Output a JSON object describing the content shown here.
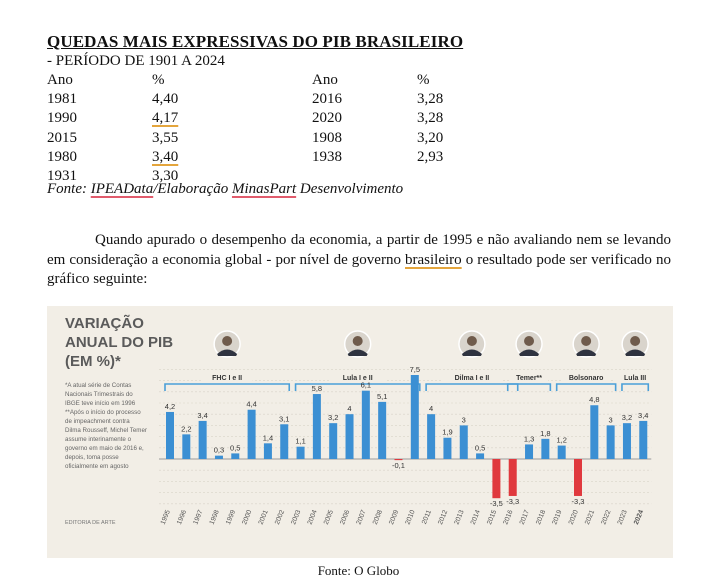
{
  "document": {
    "title": "QUEDAS MAIS EXPRESSIVAS DO PIB BRASILEIRO",
    "subtitle": "- PERÍODO DE 1901 A 2024",
    "table_left": {
      "headers": [
        "Ano",
        "%"
      ],
      "rows": [
        [
          "1981",
          "4,40"
        ],
        [
          "1990",
          "4,17"
        ],
        [
          "2015",
          "3,55"
        ],
        [
          "1980",
          "3,40"
        ],
        [
          "1931",
          "3,30"
        ]
      ]
    },
    "table_right": {
      "headers": [
        "Ano",
        "%"
      ],
      "rows": [
        [
          "2016",
          "3,28"
        ],
        [
          "2020",
          "3,28"
        ],
        [
          "1908",
          "3,20"
        ],
        [
          "1938",
          "2,93"
        ]
      ]
    },
    "source": {
      "prefix": "Fonte: ",
      "part1": "IPEAData",
      "part2": "/Elaboração ",
      "part3": "MinasPart",
      "part4": " Desenvolvimento"
    },
    "paragraph": {
      "before": "Quando apurado o desempenho da economia, a partir de 1995 e não avaliando nem se levando em consideração a economia global - por nível de governo ",
      "highlight": "brasileiro",
      "after": " o resultado pode ser verificado no gráfico seguinte:"
    },
    "figure_caption": "Fonte: O Globo"
  },
  "chart_data": {
    "type": "bar",
    "title": "VARIAÇÃO ANUAL DO PIB (EM %)*",
    "title_lines": [
      "VARIAÇÃO",
      "ANUAL DO PIB",
      "(EM %)*"
    ],
    "notes": [
      "*A atual série de Contas",
      "Nacionais Trimestrais do",
      "IBGE teve início em 1996",
      "**Após o início do processo",
      "de impeachment contra",
      "Dilma Rousseff, Michel Temer",
      "assume interinamente o",
      "governo em maio de 2016 e,",
      "depois, toma posse",
      "oficialmente em agosto"
    ],
    "credit": "EDITORIA DE ARTE",
    "categories": [
      "1995",
      "1996",
      "1997",
      "1998",
      "1999",
      "2000",
      "2001",
      "2002",
      "2003",
      "2004",
      "2005",
      "2006",
      "2007",
      "2008",
      "2009",
      "2010",
      "2011",
      "2012",
      "2013",
      "2014",
      "2015",
      "2016",
      "2017",
      "2018",
      "2019",
      "2020",
      "2021",
      "2022",
      "2023",
      "2024"
    ],
    "values": [
      4.2,
      2.2,
      3.4,
      0.3,
      0.5,
      4.4,
      1.4,
      3.1,
      1.1,
      5.8,
      3.2,
      4.0,
      6.1,
      5.1,
      -0.1,
      7.5,
      4.0,
      1.9,
      3.0,
      0.5,
      -3.5,
      -3.3,
      1.3,
      1.8,
      1.2,
      -3.3,
      4.8,
      3.0,
      3.2,
      3.4
    ],
    "value_labels": [
      "4,2",
      "2,2",
      "3,4",
      "0,3",
      "0,5",
      "4,4",
      "1,4",
      "3,1",
      "1,1",
      "5,8",
      "3,2",
      "4",
      "6,1",
      "5,1",
      "-0,1",
      "7,5",
      "4",
      "1,9",
      "3",
      "0,5",
      "-3,5",
      "-3,3",
      "1,3",
      "1,8",
      "1,2",
      "-3,3",
      "4,8",
      "3",
      "3,2",
      "3,4"
    ],
    "governments": [
      {
        "label": "FHC I e II",
        "start": "1995",
        "end": "2002"
      },
      {
        "label": "Lula I e II",
        "start": "2003",
        "end": "2010"
      },
      {
        "label": "Dilma I e II",
        "start": "2011",
        "end": "2016"
      },
      {
        "label": "Temer**",
        "start": "2016",
        "end": "2018"
      },
      {
        "label": "Bolsonaro",
        "start": "2019",
        "end": "2022"
      },
      {
        "label": "Lula III",
        "start": "2023",
        "end": "2024"
      }
    ],
    "ylim": [
      -4,
      8
    ],
    "colors": {
      "positive": "#3b8fd3",
      "negative": "#e0393e",
      "title": "#5a5a5a",
      "background": "#f2eee6"
    }
  }
}
